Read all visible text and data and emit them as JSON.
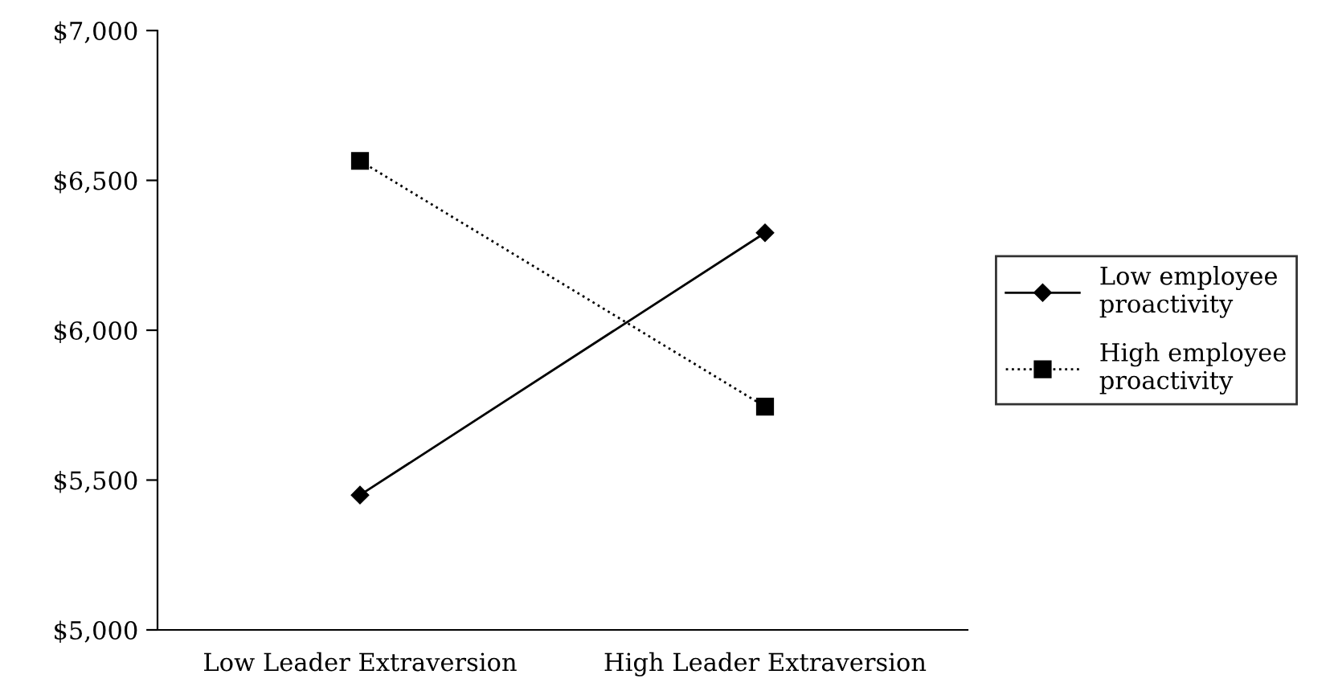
{
  "chart_data": {
    "type": "line",
    "categories": [
      "Low Leader Extraversion",
      "High Leader Extraversion"
    ],
    "series": [
      {
        "name": "Low employee proactivity",
        "color": "#000000",
        "values": [
          5450,
          6325
        ],
        "marker": "diamond",
        "line_style": "solid"
      },
      {
        "name": "High employee proactivity",
        "color": "#000000",
        "values": [
          6565,
          5745
        ],
        "marker": "square",
        "line_style": "dotted"
      }
    ],
    "ylim": [
      5000,
      7000
    ],
    "yticks": [
      {
        "value": 5000,
        "label": "$5,000"
      },
      {
        "value": 5500,
        "label": "$5,500"
      },
      {
        "value": 6000,
        "label": "$6,000"
      },
      {
        "value": 6500,
        "label": "$6,500"
      },
      {
        "value": 7000,
        "label": "$7,000"
      }
    ],
    "grid": false,
    "legend": "right"
  }
}
